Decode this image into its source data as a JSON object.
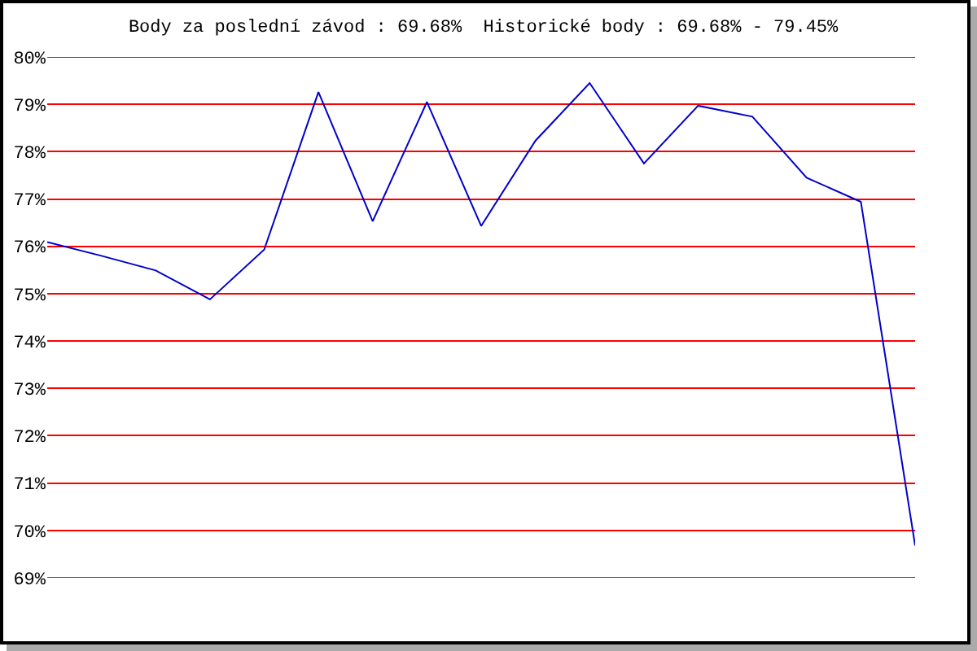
{
  "chart_data": {
    "type": "line",
    "title": "Body za poslední závod : 69.68%  Historické body : 69.68% - 79.45%",
    "categories": [
      null,
      null,
      null,
      null,
      null,
      null,
      null,
      null,
      null,
      null,
      null,
      null,
      null,
      null,
      null,
      null,
      null
    ],
    "series": [
      {
        "color": "#0000cc",
        "values": [
          76.09,
          75.8,
          75.49,
          74.88,
          75.93,
          79.26,
          76.53,
          79.05,
          76.43,
          78.23,
          79.45,
          77.75,
          78.97,
          78.74,
          77.45,
          76.94,
          69.68
        ]
      }
    ],
    "ylim": [
      69,
      80
    ],
    "yticks": [
      {
        "value": 69,
        "label": "69%"
      },
      {
        "value": 70,
        "label": "70%"
      },
      {
        "value": 71,
        "label": "71%"
      },
      {
        "value": 72,
        "label": "72%"
      },
      {
        "value": 73,
        "label": "73%"
      },
      {
        "value": 74,
        "label": "74%"
      },
      {
        "value": 75,
        "label": "75%"
      },
      {
        "value": 76,
        "label": "76%"
      },
      {
        "value": 77,
        "label": "77%"
      },
      {
        "value": 78,
        "label": "78%"
      },
      {
        "value": 79,
        "label": "79%"
      },
      {
        "value": 80,
        "label": "80%"
      }
    ],
    "grid": "y",
    "marker": "none",
    "line_style": "solid",
    "tick_labels": "y"
  }
}
